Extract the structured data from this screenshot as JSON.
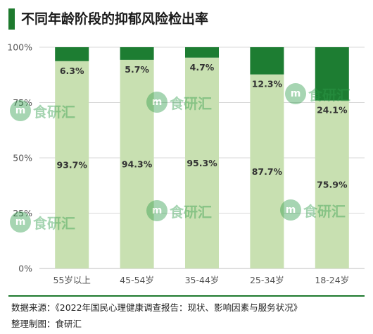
{
  "title": "不同年龄阶段的抑郁风险检出率",
  "source_text": "数据来源：《2022年国民心理健康调查报告：现状、影响因素与服务状况》",
  "maker_text": "整理制图：食研汇",
  "watermark_text": "食研汇",
  "watermark_logo": "m",
  "colors": {
    "accent": "#1e7a2e",
    "risk": "#1d7d32",
    "no_risk": "#c8e0b1",
    "grid": "#d9d9d9",
    "axis_text": "#555555",
    "label_text": "#333333"
  },
  "chart_data": {
    "type": "bar",
    "stacked": true,
    "categories": [
      "55岁以上",
      "45-54岁",
      "35-44岁",
      "25-34岁",
      "18-24岁"
    ],
    "series": [
      {
        "key": "no_risk",
        "values": [
          93.7,
          94.3,
          95.3,
          87.7,
          75.9
        ],
        "labels": [
          "93.7%",
          "94.3%",
          "95.3%",
          "87.7%",
          "75.9%"
        ]
      },
      {
        "key": "risk",
        "values": [
          6.3,
          5.7,
          4.7,
          12.3,
          24.1
        ],
        "labels": [
          "6.3%",
          "5.7%",
          "4.7%",
          "12.3%",
          "24.1%"
        ]
      }
    ],
    "yticks": [
      "0%",
      "25%",
      "50%",
      "75%",
      "100%"
    ],
    "ylim": [
      0,
      100
    ],
    "grid": true
  }
}
